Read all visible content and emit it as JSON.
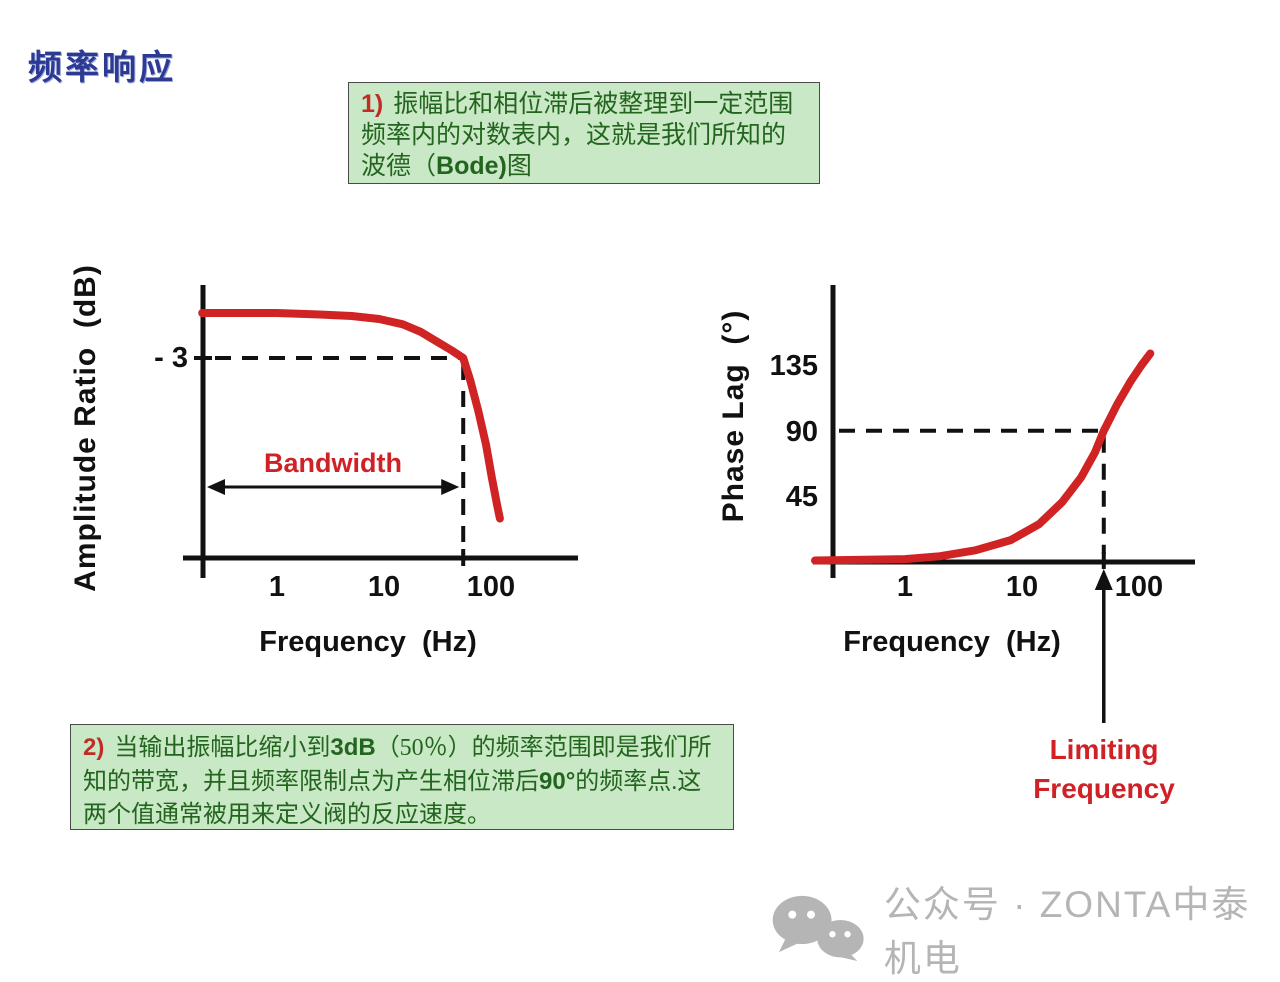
{
  "title": "频率响应",
  "colors": {
    "title_blue": "#2c3a94",
    "curve_red": "#d02424",
    "annotation_red": "#cf2126",
    "note_box_bg": "#c9e8c5",
    "note_text_green": "#23651f",
    "axis_black": "#111111",
    "watermark_gray": "#b5b5b5"
  },
  "notes": [
    {
      "prefix": "1)",
      "parts": [
        "振幅比和相位滞后被整理到一定范围频率内的对数表内，这就是我们所知的波德（",
        "Bode)",
        "图"
      ]
    },
    {
      "prefix": "2)",
      "parts": [
        "当输出振幅比缩小到",
        "3dB",
        "（50％）的频率范围即是我们所知的带宽，并且频率限制点为产生相位滞后",
        "90°",
        "的频率点.这两个值通常被用来定义阀的反应速度。"
      ]
    }
  ],
  "chart_data": [
    {
      "type": "line",
      "id": "amplitude-bode-plot",
      "title": "",
      "ylabel": "Amplitude Ratio  (dB)",
      "xlabel": "Frequency  (Hz)",
      "x_scale": "log",
      "grid": false,
      "x_ticks": [
        1,
        10,
        100
      ],
      "x_range": [
        0.2,
        700
      ],
      "y_range": [
        -16,
        2
      ],
      "ref_level_db": -3,
      "ref_label": "- 3",
      "bandwidth_hz": 55,
      "annotation": "Bandwidth",
      "series": [
        {
          "name": "amplitude_ratio",
          "color": "#d02424",
          "points": [
            [
              0.2,
              0
            ],
            [
              1,
              0
            ],
            [
              2.5,
              -0.1
            ],
            [
              5,
              -0.2
            ],
            [
              9,
              -0.4
            ],
            [
              15,
              -0.75
            ],
            [
              22,
              -1.25
            ],
            [
              32,
              -1.95
            ],
            [
              43,
              -2.5
            ],
            [
              55,
              -3
            ],
            [
              64,
              -4.5
            ],
            [
              76,
              -6.5
            ],
            [
              90,
              -8.8
            ],
            [
              102,
              -11
            ],
            [
              114,
              -12.8
            ],
            [
              121,
              -13.7
            ]
          ]
        }
      ]
    },
    {
      "type": "line",
      "id": "phase-bode-plot",
      "title": "",
      "ylabel": "Phase Lag  (°)",
      "xlabel": "Frequency  (Hz)",
      "x_scale": "log",
      "grid": false,
      "x_ticks": [
        1,
        10,
        100
      ],
      "y_ticks": [
        45,
        90,
        135
      ],
      "x_range": [
        0.17,
        450
      ],
      "y_range": [
        0,
        190
      ],
      "ref_level_deg": 90,
      "limiting_frequency_hz": 50,
      "annotation": "Limiting Frequency",
      "series": [
        {
          "name": "phase_lag",
          "color": "#d02424",
          "points": [
            [
              0.17,
              1
            ],
            [
              1,
              2
            ],
            [
              2,
              4
            ],
            [
              4,
              8
            ],
            [
              8,
              15
            ],
            [
              14,
              26
            ],
            [
              22,
              41
            ],
            [
              32,
              58
            ],
            [
              42,
              75
            ],
            [
              50,
              90
            ],
            [
              65,
              108
            ],
            [
              85,
              124
            ],
            [
              105,
              135
            ],
            [
              125,
              143
            ]
          ]
        }
      ]
    }
  ],
  "watermark": {
    "label": "公众号 · ZONTA中泰机电",
    "icon": "wechat-icon"
  }
}
